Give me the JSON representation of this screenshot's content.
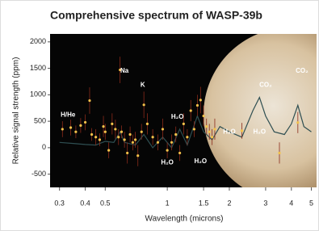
{
  "chart_data": {
    "type": "scatter",
    "title": "Comprehensive spectrum of WASP-39b",
    "x_label": "Wavelength (microns)",
    "y_label": "Relative signal strength (ppm)",
    "log_x": true,
    "xlim": [
      0.27,
      5.3
    ],
    "xticks": [
      0.3,
      0.4,
      0.5,
      1,
      1.5,
      2,
      3,
      4,
      5
    ],
    "ylim": [
      -750,
      2150
    ],
    "yticks": [
      -500,
      0,
      500,
      1000,
      1500,
      2000
    ],
    "color": "#f2c24a",
    "x": [
      0.31,
      0.34,
      0.36,
      0.38,
      0.4,
      0.42,
      0.43,
      0.45,
      0.47,
      0.49,
      0.5,
      0.52,
      0.54,
      0.56,
      0.58,
      0.59,
      0.6,
      0.62,
      0.64,
      0.66,
      0.68,
      0.7,
      0.72,
      0.75,
      0.77,
      0.8,
      0.85,
      0.9,
      0.95,
      1.0,
      1.05,
      1.1,
      1.15,
      1.2,
      1.25,
      1.3,
      1.35,
      1.4,
      1.45,
      1.5,
      1.55,
      1.6,
      1.65,
      1.7,
      2.3,
      3.5,
      4.3
    ],
    "values": [
      350,
      380,
      300,
      420,
      480,
      890,
      250,
      200,
      150,
      400,
      300,
      -50,
      450,
      350,
      200,
      1470,
      300,
      150,
      -100,
      250,
      100,
      150,
      -150,
      300,
      810,
      450,
      200,
      100,
      350,
      -50,
      100,
      250,
      -100,
      450,
      200,
      700,
      350,
      800,
      900,
      600,
      400,
      300,
      200,
      350,
      320,
      -100,
      475
    ],
    "errors": [
      150,
      150,
      120,
      140,
      150,
      250,
      120,
      150,
      120,
      200,
      150,
      150,
      200,
      180,
      150,
      250,
      120,
      150,
      200,
      150,
      150,
      150,
      200,
      150,
      250,
      200,
      150,
      150,
      200,
      150,
      150,
      150,
      150,
      200,
      150,
      200,
      150,
      200,
      250,
      200,
      150,
      150,
      150,
      200,
      150,
      200,
      200
    ],
    "model": {
      "color": "#2f4f52",
      "x": [
        0.3,
        0.35,
        0.4,
        0.45,
        0.5,
        0.55,
        0.59,
        0.62,
        0.7,
        0.77,
        0.85,
        0.95,
        1.05,
        1.15,
        1.25,
        1.4,
        1.5,
        1.65,
        1.8,
        2.0,
        2.3,
        2.6,
        2.8,
        3.0,
        3.3,
        3.7,
        4.0,
        4.3,
        4.6,
        5.0
      ],
      "values": [
        100,
        80,
        60,
        50,
        120,
        100,
        300,
        100,
        50,
        250,
        0,
        200,
        0,
        350,
        50,
        600,
        300,
        150,
        400,
        300,
        200,
        700,
        950,
        600,
        300,
        250,
        450,
        800,
        400,
        300
      ]
    },
    "annotations": [
      {
        "text": "H/He",
        "x": 0.33,
        "y": 620
      },
      {
        "text": "Na",
        "x": 0.62,
        "y": 1450
      },
      {
        "text": "K",
        "x": 0.76,
        "y": 1180
      },
      {
        "text": "H₂O",
        "x": 1.12,
        "y": 580
      },
      {
        "text": "H₂O",
        "x": 1.0,
        "y": -280
      },
      {
        "text": "H₂O",
        "x": 1.45,
        "y": -260
      },
      {
        "text": "H₂O",
        "x": 2.0,
        "y": 300
      },
      {
        "text": "H₂O",
        "x": 2.8,
        "y": 300
      },
      {
        "text": "CO₂",
        "x": 3.0,
        "y": 1180
      },
      {
        "text": "CO₂",
        "x": 4.5,
        "y": 1450
      }
    ]
  }
}
